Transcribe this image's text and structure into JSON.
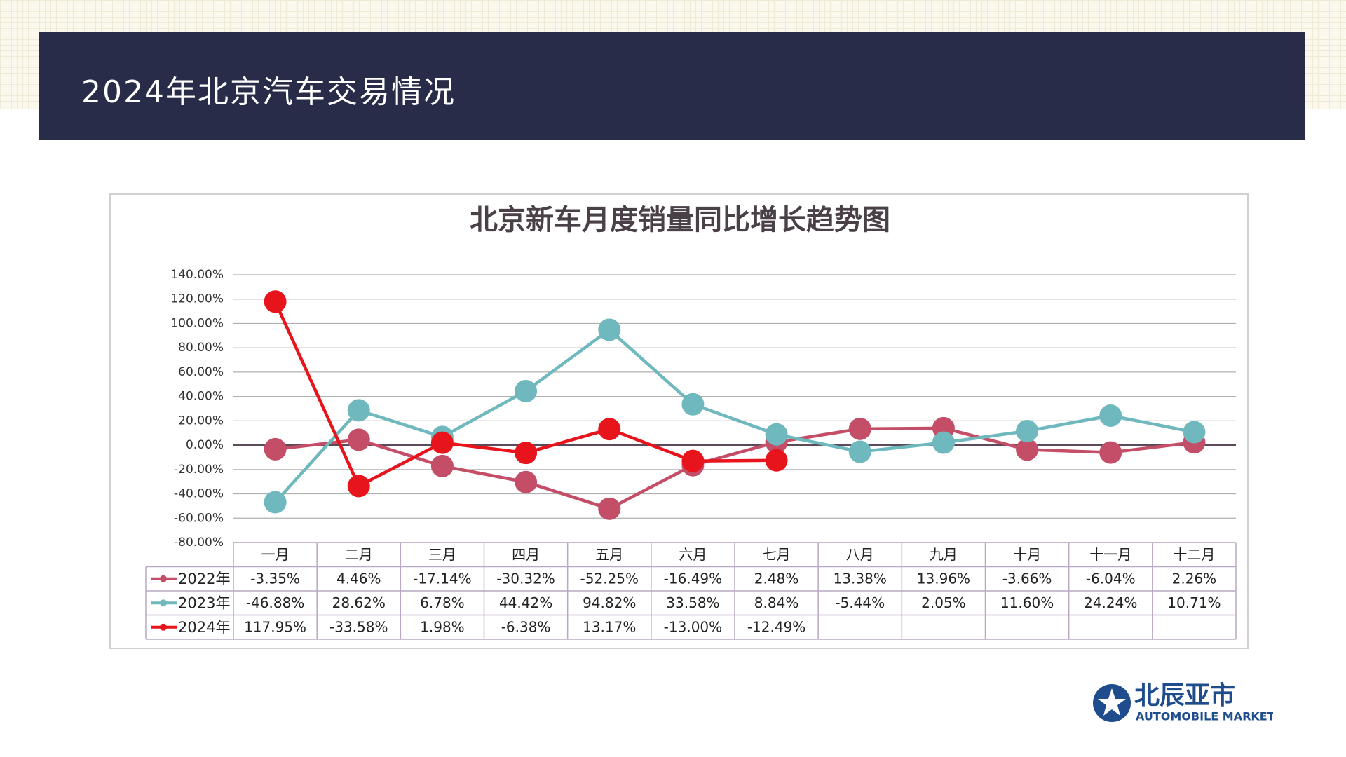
{
  "header": {
    "title": "2024年北京汽车交易情况"
  },
  "chart_data": {
    "type": "line",
    "title": "北京新车月度销量同比增长趋势图",
    "categories": [
      "一月",
      "二月",
      "三月",
      "四月",
      "五月",
      "六月",
      "七月",
      "八月",
      "九月",
      "十月",
      "十一月",
      "十二月"
    ],
    "series": [
      {
        "name": "2022年",
        "color": "#c44e68",
        "values": [
          -3.35,
          4.46,
          -17.14,
          -30.32,
          -52.25,
          -16.49,
          2.48,
          13.38,
          13.96,
          -3.66,
          -6.04,
          2.26
        ],
        "value_labels": [
          "-3.35%",
          "4.46%",
          "-17.14%",
          "-30.32%",
          "-52.25%",
          "-16.49%",
          "2.48%",
          "13.38%",
          "13.96%",
          "-3.66%",
          "-6.04%",
          "2.26%"
        ]
      },
      {
        "name": "2023年",
        "color": "#6fb8bd",
        "values": [
          -46.88,
          28.62,
          6.78,
          44.42,
          94.82,
          33.58,
          8.84,
          -5.44,
          2.05,
          11.6,
          24.24,
          10.71
        ],
        "value_labels": [
          "-46.88%",
          "28.62%",
          "6.78%",
          "44.42%",
          "94.82%",
          "33.58%",
          "8.84%",
          "-5.44%",
          "2.05%",
          "11.60%",
          "24.24%",
          "10.71%"
        ]
      },
      {
        "name": "2024年",
        "color": "#e8141c",
        "values": [
          117.95,
          -33.58,
          1.98,
          -6.38,
          13.17,
          -13.0,
          -12.49,
          null,
          null,
          null,
          null,
          null
        ],
        "value_labels": [
          "117.95%",
          "-33.58%",
          "1.98%",
          "-6.38%",
          "13.17%",
          "-13.00%",
          "-12.49%",
          null,
          null,
          null,
          null,
          null
        ]
      }
    ],
    "ylim": [
      -80,
      140
    ],
    "yticks": [
      {
        "value": -80,
        "label": "-80.00%"
      },
      {
        "value": -60,
        "label": "-60.00%"
      },
      {
        "value": -40,
        "label": "-40.00%"
      },
      {
        "value": -20,
        "label": "-20.00%"
      },
      {
        "value": 0,
        "label": "0.00%"
      },
      {
        "value": 20,
        "label": "20.00%"
      },
      {
        "value": 40,
        "label": "40.00%"
      },
      {
        "value": 60,
        "label": "60.00%"
      },
      {
        "value": 80,
        "label": "80.00%"
      },
      {
        "value": 100,
        "label": "100.00%"
      },
      {
        "value": 120,
        "label": "120.00%"
      },
      {
        "value": 140,
        "label": "140.00%"
      }
    ],
    "grid": true
  },
  "logo": {
    "name": "北辰亚市",
    "subtitle": "AUTOMOBILE MARKET"
  }
}
